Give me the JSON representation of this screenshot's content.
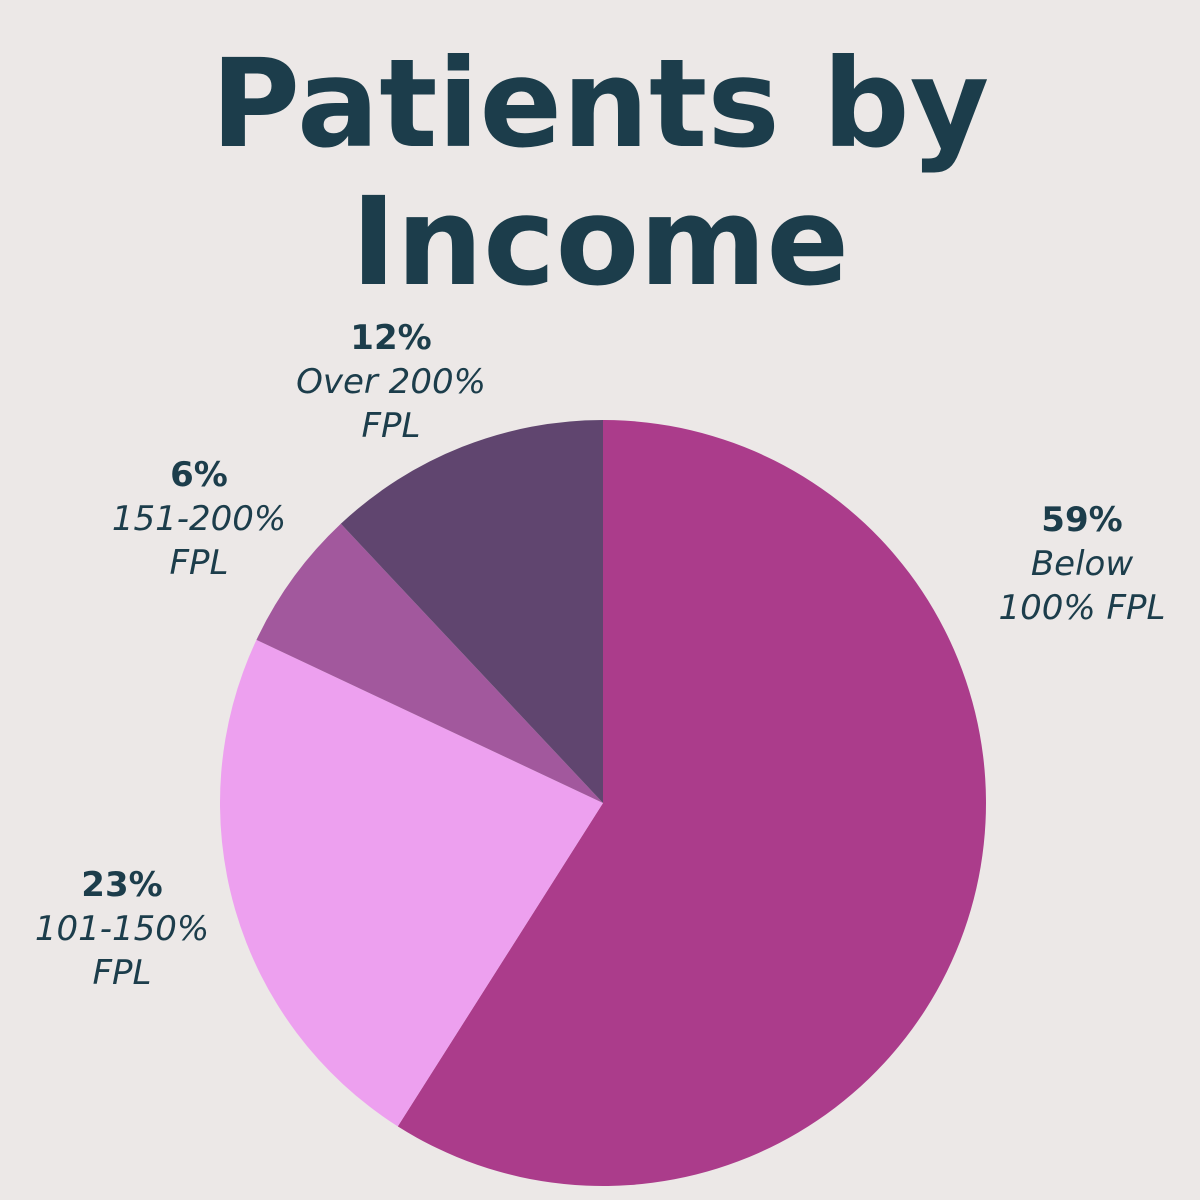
{
  "chart_data": {
    "type": "pie",
    "title": "Patients by Income",
    "categories": [
      "Below 100% FPL",
      "101-150% FPL",
      "151-200% FPL",
      "Over 200% FPL"
    ],
    "values": [
      59,
      23,
      6,
      12
    ],
    "value_labels": [
      "59%",
      "23%",
      "6%",
      "12%"
    ],
    "colors": [
      "#ab3c8b",
      "#eda0ef",
      "#a2589d",
      "#60456f"
    ]
  }
}
